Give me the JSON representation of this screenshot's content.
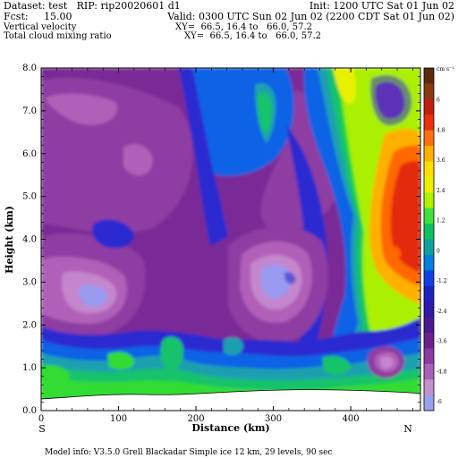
{
  "header": {
    "line1_left": "Dataset: test   RIP: rip20020601 d1",
    "line1_right": "Init: 1200 UTC Sat 01 Jun 02",
    "line2_left": "Fcst:     15.00",
    "line2_right": "Valid: 0300 UTC Sun 02 Jun 02 (2200 CDT Sat 01 Jun 02)",
    "line3_left": "Vertical velocity",
    "line3_right": "XY=  66.5, 16.4 to   66.0, 57.2",
    "line4_left": "Total cloud mixing ratio",
    "line4_right": "XY=  66.5, 16.4 to   66.0, 57.2"
  },
  "footer": {
    "model_info": "Model info: V3.5.0   Grell       Blackadar   Simple ice     12 km,   29 levels,    90 sec"
  },
  "chart_data": {
    "type": "heatmap",
    "title": "Vertical velocity",
    "xlabel": "Distance (km)",
    "ylabel": "Height (km)",
    "xlim": [
      0,
      490
    ],
    "ylim": [
      0,
      8
    ],
    "x_ticks": [
      0,
      100,
      200,
      300,
      400
    ],
    "y_ticks": [
      "0.0",
      "1.0",
      "2.0",
      "3.0",
      "4.0",
      "5.0",
      "6.0",
      "7.0",
      "8.0"
    ],
    "x_end_labels": {
      "left": "S",
      "right": "N"
    },
    "colorbar": {
      "unit": "cm s⁻¹",
      "tick_labels": [
        "6",
        "4.8",
        "3.6",
        "2.4",
        "1.2",
        "0",
        "-1.2",
        "-2.4",
        "-3.6",
        "-4.8",
        "-6"
      ],
      "colors": [
        "#5a2a0a",
        "#8b3a10",
        "#c02010",
        "#e83010",
        "#ff7010",
        "#ffb000",
        "#ffe000",
        "#e8f000",
        "#b0f000",
        "#40e040",
        "#10c060",
        "#10a0a0",
        "#0080e0",
        "#1040e0",
        "#2020c0",
        "#3018a8",
        "#4a1890",
        "#6a2090",
        "#8a3aa0",
        "#a860b8",
        "#c490d0",
        "#9aa0f0"
      ]
    },
    "colormap_by_level": {
      "-6": "#5a44a4",
      "-4": "#7a2c96",
      "-3": "#8e3ca2",
      "-2": "#b060b8",
      "-1": "#c486cc",
      "0": "#9a9af0",
      "1": "#2a2ad0",
      "2": "#0d62e6",
      "3": "#1aa0b0",
      "4": "#18c26a",
      "5": "#32dc32",
      "6": "#aaf000",
      "7": "#e8f000",
      "8": "#ffb000",
      "9": "#ff6800",
      "10": "#e42c10"
    },
    "regions": [
      {
        "name": "background",
        "level": "-4"
      },
      {
        "name": "mid-high purple",
        "level": "-3"
      },
      {
        "name": "lower left maximum",
        "level": "-2",
        "x_range": [
          0,
          160
        ],
        "y_range": [
          2.1,
          3.8
        ]
      },
      {
        "name": "lower left core",
        "level": "-1",
        "x_center": 75,
        "y_center": 2.75
      },
      {
        "name": "central maximum",
        "level": "-2",
        "x_range": [
          255,
          345
        ],
        "y_range": [
          2.2,
          4.0
        ]
      },
      {
        "name": "central core",
        "level": "0",
        "x_center": 300,
        "y_center": 3.1
      },
      {
        "name": "right updraft",
        "level": "10",
        "x_range": [
          395,
          490
        ],
        "y_range": [
          3.0,
          8.0
        ]
      },
      {
        "name": "surface zone",
        "level": "5",
        "x_range": [
          0,
          490
        ],
        "y_range": [
          0,
          1.2
        ]
      }
    ]
  }
}
